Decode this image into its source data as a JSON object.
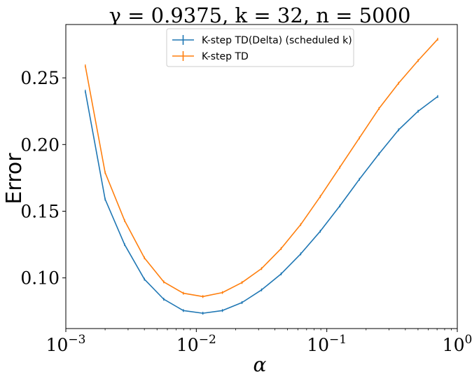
{
  "chart_data": {
    "type": "line",
    "title": "γ = 0.9375, k = 32, n = 5000",
    "xlabel": "α",
    "ylabel": "Error",
    "xscale": "log",
    "xlim": [
      0.001,
      1
    ],
    "ylim": [
      0.062,
      0.29
    ],
    "grid": false,
    "legend_position": "top-center",
    "x_ticks": [
      {
        "value": 0.001,
        "base": "10",
        "exp": "−3"
      },
      {
        "value": 0.01,
        "base": "10",
        "exp": "−2"
      },
      {
        "value": 0.1,
        "base": "10",
        "exp": "−1"
      },
      {
        "value": 1,
        "base": "10",
        "exp": "0"
      }
    ],
    "y_ticks": [
      {
        "value": 0.1,
        "label": "0.10"
      },
      {
        "value": 0.15,
        "label": "0.15"
      },
      {
        "value": 0.2,
        "label": "0.20"
      },
      {
        "value": 0.25,
        "label": "0.25"
      }
    ],
    "x": [
      0.00141,
      0.002,
      0.00282,
      0.004,
      0.00563,
      0.00795,
      0.01122,
      0.01585,
      0.02239,
      0.03162,
      0.04467,
      0.0631,
      0.08913,
      0.1259,
      0.1778,
      0.2512,
      0.3548,
      0.5012,
      0.7079
    ],
    "series": [
      {
        "name": "K-step TD(Delta) (scheduled k)",
        "color": "#1f77b4",
        "values": [
          0.24,
          0.159,
          0.125,
          0.099,
          0.084,
          0.0755,
          0.0735,
          0.0755,
          0.0815,
          0.091,
          0.103,
          0.118,
          0.135,
          0.154,
          0.174,
          0.193,
          0.211,
          0.225,
          0.236
        ]
      },
      {
        "name": "K-step TD",
        "color": "#ff7f0e",
        "values": [
          0.259,
          0.179,
          0.143,
          0.115,
          0.097,
          0.0885,
          0.086,
          0.089,
          0.0965,
          0.107,
          0.122,
          0.14,
          0.161,
          0.183,
          0.205,
          0.227,
          0.246,
          0.263,
          0.279
        ]
      }
    ]
  }
}
